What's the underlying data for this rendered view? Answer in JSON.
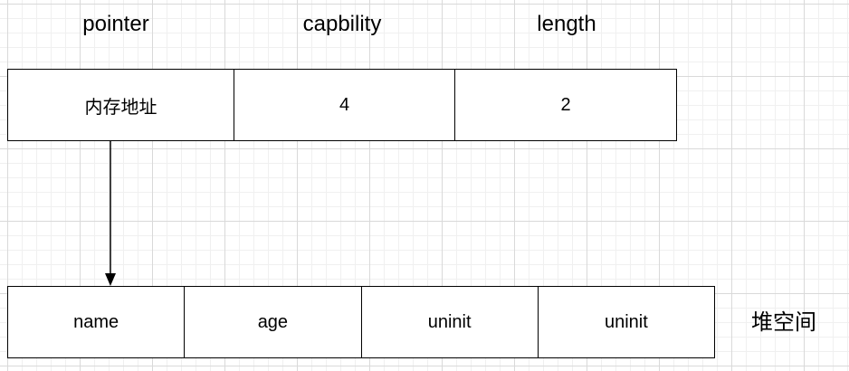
{
  "struct_headers": {
    "pointer": "pointer",
    "capacity": "capbility",
    "length": "length"
  },
  "struct_cells": {
    "pointer": "内存地址",
    "capacity": "4",
    "length": "2"
  },
  "heap_cells": [
    "name",
    "age",
    "uninit",
    "uninit"
  ],
  "heap_label": "堆空间",
  "colors": {
    "stroke": "#000000",
    "background": "#ffffff",
    "grid": "#d9d9d9"
  }
}
